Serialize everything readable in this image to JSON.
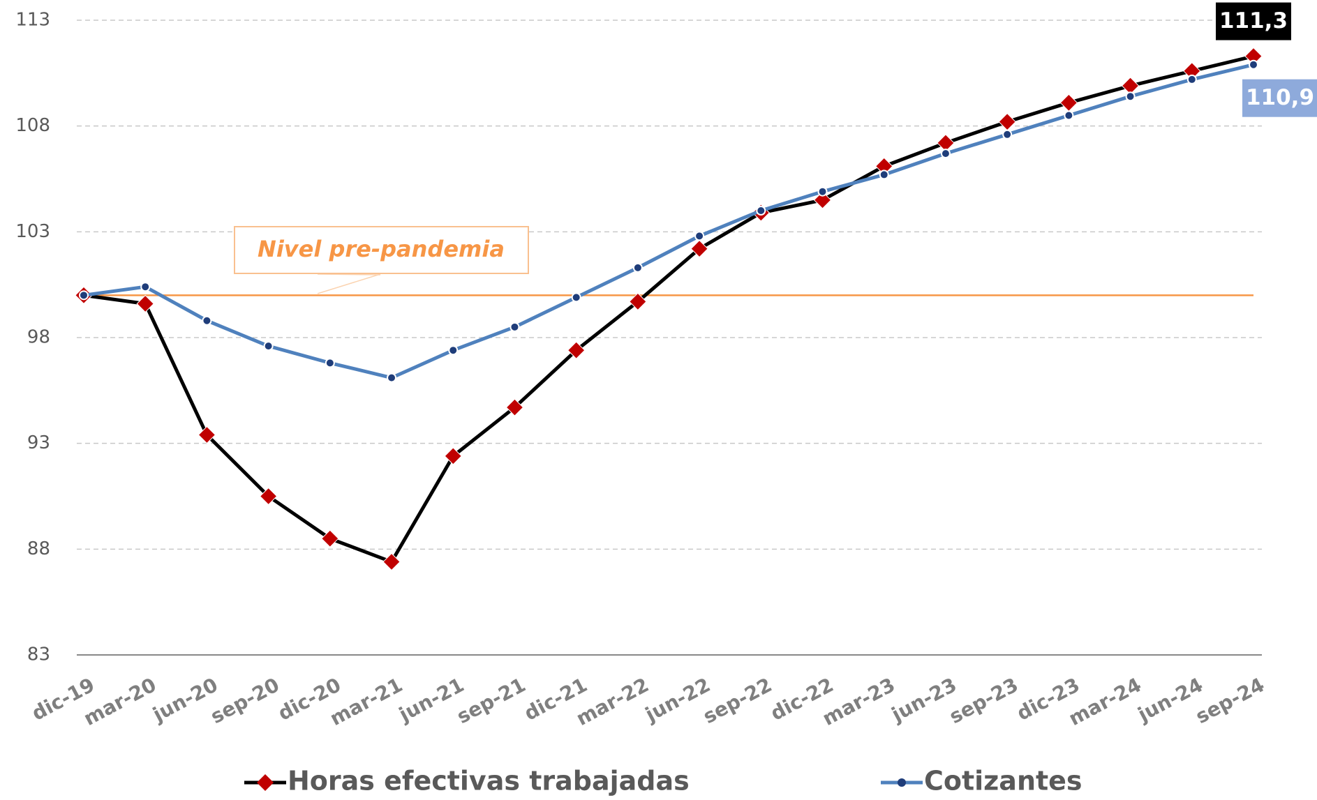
{
  "chart_data": {
    "type": "line",
    "categories": [
      "dic-19",
      "mar-20",
      "jun-20",
      "sep-20",
      "dic-20",
      "mar-21",
      "jun-21",
      "sep-21",
      "dic-21",
      "mar-22",
      "jun-22",
      "sep-22",
      "dic-22",
      "mar-23",
      "jun-23",
      "sep-23",
      "dic-23",
      "mar-24",
      "jun-24",
      "sep-24"
    ],
    "series": [
      {
        "name": "Horas efectivas trabajadas",
        "color": "#000000",
        "marker_color": "#c00000",
        "values": [
          100,
          99.6,
          93.4,
          90.5,
          88.5,
          87.4,
          92.4,
          94.7,
          97.4,
          99.7,
          102.2,
          103.9,
          104.5,
          106.1,
          107.2,
          108.2,
          109.1,
          109.9,
          110.6,
          111.3
        ],
        "value_labels": [
          null,
          null,
          null,
          null,
          null,
          null,
          null,
          null,
          null,
          null,
          null,
          null,
          null,
          null,
          null,
          null,
          null,
          null,
          null,
          "111,3"
        ]
      },
      {
        "name": "Cotizantes",
        "color": "#4f81bd",
        "marker_color": "#1f3d7a",
        "values": [
          100,
          100.4,
          98.8,
          97.6,
          96.8,
          96.1,
          97.4,
          98.5,
          99.9,
          101.3,
          102.8,
          104.0,
          104.9,
          105.7,
          106.7,
          107.6,
          108.5,
          109.4,
          110.2,
          110.9
        ],
        "value_labels": [
          null,
          null,
          null,
          null,
          null,
          null,
          null,
          null,
          null,
          null,
          null,
          null,
          null,
          null,
          null,
          null,
          null,
          null,
          null,
          "110,9"
        ]
      }
    ],
    "reference_line": {
      "value": 100,
      "label": "Nivel pre-pandemia",
      "color": "#f79646"
    },
    "ylim": [
      83,
      113
    ],
    "yticks": [
      83,
      88,
      93,
      98,
      103,
      108,
      113
    ],
    "grid": true,
    "legend": "bottom"
  }
}
